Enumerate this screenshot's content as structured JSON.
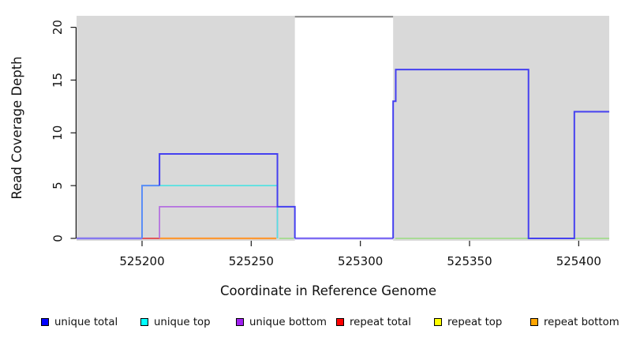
{
  "chart_data": {
    "type": "line",
    "subtype": "step-coverage-plot",
    "title": "",
    "x_axis": {
      "label": "Coordinate in Reference Genome",
      "range": [
        525170,
        525414
      ],
      "ticks": [
        {
          "v": 525200,
          "label": "525200"
        },
        {
          "v": 525250,
          "label": "525250"
        },
        {
          "v": 525300,
          "label": "525300"
        },
        {
          "v": 525350,
          "label": "525350"
        },
        {
          "v": 525400,
          "label": "525400"
        }
      ]
    },
    "y_axis": {
      "label": "Read Coverage Depth",
      "range": [
        0,
        21
      ],
      "ticks": [
        {
          "v": 0,
          "label": "0"
        },
        {
          "v": 5,
          "label": "5"
        },
        {
          "v": 10,
          "label": "10"
        },
        {
          "v": 15,
          "label": "15"
        },
        {
          "v": 20,
          "label": "20"
        }
      ]
    },
    "panel": {
      "bg": "#d9d9d9",
      "repeat_gap_fill": "#ffffff",
      "gap_cap_color": "#8a8a8a",
      "gap_cap_depth": 21,
      "axis_color": "#1a1a1a"
    },
    "regions": {
      "unique_gray": [
        [
          525170,
          525270
        ],
        [
          525315,
          525414
        ]
      ],
      "repeat_masked_white": [
        [
          525270,
          525315
        ]
      ]
    },
    "series": [
      {
        "name": "unique total",
        "color": "#0000ff",
        "steps": [
          [
            525170,
            0
          ],
          [
            525200,
            5
          ],
          [
            525208,
            8
          ],
          [
            525262,
            3
          ],
          [
            525270,
            0
          ],
          [
            525315,
            13
          ],
          [
            525316,
            16
          ],
          [
            525377,
            0
          ],
          [
            525398,
            12
          ],
          [
            525414,
            12
          ]
        ]
      },
      {
        "name": "unique top",
        "color": "#00ffff",
        "steps": [
          [
            525170,
            0
          ],
          [
            525200,
            5
          ],
          [
            525262,
            0
          ],
          [
            525414,
            0
          ]
        ]
      },
      {
        "name": "unique bottom",
        "color": "#a020f0",
        "steps": [
          [
            525170,
            0
          ],
          [
            525208,
            3
          ],
          [
            525262,
            0
          ],
          [
            525414,
            0
          ]
        ]
      },
      {
        "name": "repeat total",
        "color": "#ff0000",
        "steps": [
          [
            525170,
            0
          ],
          [
            525414,
            0
          ]
        ]
      },
      {
        "name": "repeat top",
        "color": "#ffff00",
        "steps": [
          [
            525170,
            0
          ],
          [
            525414,
            0
          ]
        ]
      },
      {
        "name": "repeat bottom",
        "color": "#ffa500",
        "steps": [
          [
            525170,
            0
          ],
          [
            525414,
            0
          ]
        ]
      }
    ],
    "render_lines": [
      {
        "name": "baseline-left-violet",
        "color": "#8678ef",
        "w": 2.4,
        "pts": [
          [
            525170,
            0
          ],
          [
            525200,
            0
          ]
        ]
      },
      {
        "name": "baseline-red",
        "color": "#e25858",
        "w": 2.0,
        "pts": [
          [
            525200,
            0
          ],
          [
            525208.5,
            0
          ]
        ]
      },
      {
        "name": "baseline-orange",
        "color": "#ff9933",
        "w": 2.2,
        "pts": [
          [
            525208,
            0
          ],
          [
            525261.5,
            0
          ]
        ]
      },
      {
        "name": "baseline-green-1",
        "color": "#a9db96",
        "w": 2.0,
        "pts": [
          [
            525262.8,
            0
          ],
          [
            525269.5,
            0
          ]
        ]
      },
      {
        "name": "baseline-gap-violet",
        "color": "#7e6cf2",
        "w": 2.4,
        "pts": [
          [
            525270,
            0
          ],
          [
            525315,
            0
          ]
        ]
      },
      {
        "name": "baseline-green-2",
        "color": "#a9db96",
        "w": 2.0,
        "pts": [
          [
            525316,
            0
          ],
          [
            525377,
            0
          ]
        ]
      },
      {
        "name": "baseline-green-3",
        "color": "#a9db96",
        "w": 2.0,
        "pts": [
          [
            525398,
            0
          ],
          [
            525414,
            0
          ]
        ]
      },
      {
        "name": "unique-bottom-line",
        "color": "#b46fe0",
        "w": 1.7,
        "pts": [
          [
            525208,
            0
          ],
          [
            525208,
            3
          ],
          [
            525262,
            3
          ],
          [
            525262,
            0
          ]
        ]
      },
      {
        "name": "unique-top-line",
        "color": "#55e1e1",
        "w": 1.7,
        "pts": [
          [
            525200,
            0
          ],
          [
            525200,
            5
          ],
          [
            525262,
            5
          ],
          [
            525262,
            0
          ]
        ]
      },
      {
        "name": "unique-total-azure",
        "color": "#5b8df6",
        "w": 2.0,
        "pts": [
          [
            525200,
            0
          ],
          [
            525200,
            5
          ],
          [
            525208,
            5
          ]
        ]
      },
      {
        "name": "unique-total-a",
        "color": "#4540f0",
        "w": 2.0,
        "pts": [
          [
            525208,
            5
          ],
          [
            525208,
            8
          ],
          [
            525262,
            8
          ],
          [
            525262,
            3
          ],
          [
            525270,
            3
          ],
          [
            525270,
            0
          ]
        ]
      },
      {
        "name": "unique-total-b",
        "color": "#4540f0",
        "w": 2.0,
        "pts": [
          [
            525315,
            0
          ],
          [
            525315,
            13
          ],
          [
            525316.2,
            13
          ],
          [
            525316.2,
            16
          ],
          [
            525377,
            16
          ],
          [
            525377,
            0
          ],
          [
            525398,
            0
          ],
          [
            525398,
            12
          ],
          [
            525414,
            12
          ]
        ]
      }
    ]
  },
  "legend": {
    "items": [
      {
        "label": "unique total",
        "swatch_color": "#0000ff"
      },
      {
        "label": "unique top",
        "swatch_color": "#00ffff"
      },
      {
        "label": "unique bottom",
        "swatch_color": "#a020f0"
      },
      {
        "label": "repeat total",
        "swatch_color": "#ff0000"
      },
      {
        "label": "repeat top",
        "swatch_color": "#ffff00"
      },
      {
        "label": "repeat bottom",
        "swatch_color": "#ffa500"
      }
    ]
  }
}
